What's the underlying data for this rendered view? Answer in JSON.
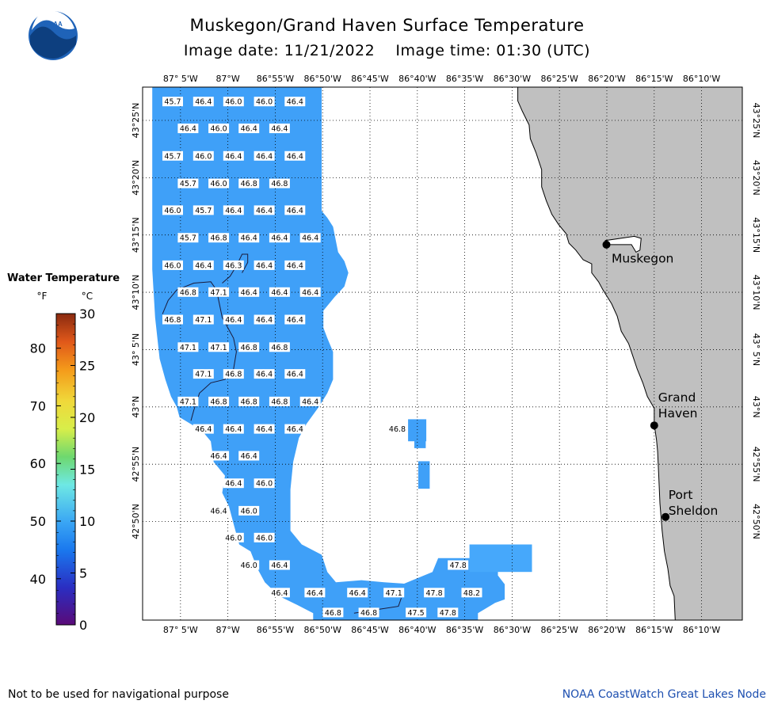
{
  "header": {
    "logo_text": "NOAA",
    "title": "Muskegon/Grand Haven Surface Temperature",
    "subtitle": "Image date: 11/21/2022    Image time: 01:30 (UTC)"
  },
  "axes": {
    "lon_ticks": [
      "87° 5'W",
      "87°W",
      "86°55'W",
      "86°50'W",
      "86°45'W",
      "86°40'W",
      "86°35'W",
      "86°30'W",
      "86°25'W",
      "86°20'W",
      "86°15'W",
      "86°10'W"
    ],
    "lat_ticks": [
      "43°25'N",
      "43°20'N",
      "43°15'N",
      "43°10'N",
      "43° 5'N",
      "43°N",
      "42°55'N",
      "42°50'N"
    ]
  },
  "cities": [
    {
      "name": "Muskegon"
    },
    {
      "name": "Grand Haven",
      "line1": "Grand",
      "line2": "Haven"
    },
    {
      "name": "Port Sheldon",
      "line1": "Port",
      "line2": "Sheldon"
    }
  ],
  "legend": {
    "title": "Water Temperature",
    "unit_f": "°F",
    "unit_c": "°C",
    "f_ticks": [
      "80",
      "70",
      "60",
      "50",
      "40"
    ],
    "c_ticks": [
      "30",
      "25",
      "20",
      "15",
      "10",
      "5",
      "0"
    ]
  },
  "readings": [
    {
      "lon": -87.097,
      "lat": 43.444,
      "t": "45.7"
    },
    {
      "lon": -87.043,
      "lat": 43.444,
      "t": "46.4"
    },
    {
      "lon": -86.99,
      "lat": 43.444,
      "t": "46.0"
    },
    {
      "lon": -86.936,
      "lat": 43.444,
      "t": "46.0"
    },
    {
      "lon": -86.882,
      "lat": 43.444,
      "t": "46.4"
    },
    {
      "lon": -87.07,
      "lat": 43.405,
      "t": "46.4"
    },
    {
      "lon": -87.016,
      "lat": 43.405,
      "t": "46.0"
    },
    {
      "lon": -86.963,
      "lat": 43.405,
      "t": "46.4"
    },
    {
      "lon": -86.909,
      "lat": 43.405,
      "t": "46.4"
    },
    {
      "lon": -87.097,
      "lat": 43.365,
      "t": "45.7"
    },
    {
      "lon": -87.043,
      "lat": 43.365,
      "t": "46.0"
    },
    {
      "lon": -86.99,
      "lat": 43.365,
      "t": "46.4"
    },
    {
      "lon": -86.936,
      "lat": 43.365,
      "t": "46.4"
    },
    {
      "lon": -86.882,
      "lat": 43.365,
      "t": "46.4"
    },
    {
      "lon": -87.07,
      "lat": 43.325,
      "t": "45.7"
    },
    {
      "lon": -87.016,
      "lat": 43.325,
      "t": "46.0"
    },
    {
      "lon": -86.963,
      "lat": 43.325,
      "t": "46.8"
    },
    {
      "lon": -86.909,
      "lat": 43.325,
      "t": "46.8"
    },
    {
      "lon": -87.097,
      "lat": 43.286,
      "t": "46.0"
    },
    {
      "lon": -87.043,
      "lat": 43.286,
      "t": "45.7"
    },
    {
      "lon": -86.99,
      "lat": 43.286,
      "t": "46.4"
    },
    {
      "lon": -86.936,
      "lat": 43.286,
      "t": "46.4"
    },
    {
      "lon": -86.882,
      "lat": 43.286,
      "t": "46.4"
    },
    {
      "lon": -87.07,
      "lat": 43.246,
      "t": "45.7"
    },
    {
      "lon": -87.016,
      "lat": 43.246,
      "t": "46.8"
    },
    {
      "lon": -86.963,
      "lat": 43.246,
      "t": "46.4"
    },
    {
      "lon": -86.909,
      "lat": 43.246,
      "t": "46.4"
    },
    {
      "lon": -86.855,
      "lat": 43.246,
      "t": "46.4"
    },
    {
      "lon": -87.097,
      "lat": 43.206,
      "t": "46.0"
    },
    {
      "lon": -87.043,
      "lat": 43.206,
      "t": "46.4"
    },
    {
      "lon": -86.99,
      "lat": 43.206,
      "t": "46.3"
    },
    {
      "lon": -86.936,
      "lat": 43.206,
      "t": "46.4"
    },
    {
      "lon": -86.882,
      "lat": 43.206,
      "t": "46.4"
    },
    {
      "lon": -87.07,
      "lat": 43.167,
      "t": "46.8"
    },
    {
      "lon": -87.016,
      "lat": 43.167,
      "t": "47.1"
    },
    {
      "lon": -86.963,
      "lat": 43.167,
      "t": "46.4"
    },
    {
      "lon": -86.909,
      "lat": 43.167,
      "t": "46.4"
    },
    {
      "lon": -86.855,
      "lat": 43.167,
      "t": "46.4"
    },
    {
      "lon": -87.097,
      "lat": 43.127,
      "t": "46.8"
    },
    {
      "lon": -87.043,
      "lat": 43.127,
      "t": "47.1"
    },
    {
      "lon": -86.99,
      "lat": 43.127,
      "t": "46.4"
    },
    {
      "lon": -86.936,
      "lat": 43.127,
      "t": "46.4"
    },
    {
      "lon": -86.882,
      "lat": 43.127,
      "t": "46.4"
    },
    {
      "lon": -87.07,
      "lat": 43.087,
      "t": "47.1"
    },
    {
      "lon": -87.016,
      "lat": 43.087,
      "t": "47.1"
    },
    {
      "lon": -86.963,
      "lat": 43.087,
      "t": "46.8"
    },
    {
      "lon": -86.909,
      "lat": 43.087,
      "t": "46.8"
    },
    {
      "lon": -87.043,
      "lat": 43.048,
      "t": "47.1"
    },
    {
      "lon": -86.99,
      "lat": 43.048,
      "t": "46.8"
    },
    {
      "lon": -86.936,
      "lat": 43.048,
      "t": "46.4"
    },
    {
      "lon": -86.882,
      "lat": 43.048,
      "t": "46.4"
    },
    {
      "lon": -87.07,
      "lat": 43.008,
      "t": "47.1"
    },
    {
      "lon": -87.016,
      "lat": 43.008,
      "t": "46.8"
    },
    {
      "lon": -86.963,
      "lat": 43.008,
      "t": "46.8"
    },
    {
      "lon": -86.909,
      "lat": 43.008,
      "t": "46.8"
    },
    {
      "lon": -86.855,
      "lat": 43.008,
      "t": "46.4"
    },
    {
      "lon": -87.043,
      "lat": 42.968,
      "t": "46.4"
    },
    {
      "lon": -86.99,
      "lat": 42.968,
      "t": "46.4"
    },
    {
      "lon": -86.936,
      "lat": 42.968,
      "t": "46.4"
    },
    {
      "lon": -86.882,
      "lat": 42.968,
      "t": "46.4"
    },
    {
      "lon": -86.702,
      "lat": 42.968,
      "t": "46.8"
    },
    {
      "lon": -87.016,
      "lat": 42.929,
      "t": "46.4"
    },
    {
      "lon": -86.963,
      "lat": 42.929,
      "t": "46.4"
    },
    {
      "lon": -86.99,
      "lat": 42.889,
      "t": "46.4"
    },
    {
      "lon": -86.936,
      "lat": 42.889,
      "t": "46.0"
    },
    {
      "lon": -87.016,
      "lat": 42.849,
      "t": "46.4"
    },
    {
      "lon": -86.963,
      "lat": 42.849,
      "t": "46.0"
    },
    {
      "lon": -86.99,
      "lat": 42.81,
      "t": "46.0"
    },
    {
      "lon": -86.936,
      "lat": 42.81,
      "t": "46.0"
    },
    {
      "lon": -86.963,
      "lat": 42.77,
      "t": "46.0"
    },
    {
      "lon": -86.909,
      "lat": 42.77,
      "t": "46.4"
    },
    {
      "lon": -86.595,
      "lat": 42.77,
      "t": "47.8"
    },
    {
      "lon": -86.909,
      "lat": 42.73,
      "t": "46.4"
    },
    {
      "lon": -86.847,
      "lat": 42.73,
      "t": "46.4"
    },
    {
      "lon": -86.772,
      "lat": 42.73,
      "t": "46.4"
    },
    {
      "lon": -86.708,
      "lat": 42.73,
      "t": "47.1"
    },
    {
      "lon": -86.637,
      "lat": 42.73,
      "t": "47.8"
    },
    {
      "lon": -86.571,
      "lat": 42.73,
      "t": "48.2"
    },
    {
      "lon": -86.815,
      "lat": 42.701,
      "t": "46.8"
    },
    {
      "lon": -86.752,
      "lat": 42.701,
      "t": "46.8"
    },
    {
      "lon": -86.669,
      "lat": 42.701,
      "t": "47.5"
    },
    {
      "lon": -86.613,
      "lat": 42.701,
      "t": "47.8"
    }
  ],
  "footer": {
    "disclaimer": "Not to be used for navigational purpose",
    "credit": "NOAA CoastWatch Great Lakes Node"
  }
}
